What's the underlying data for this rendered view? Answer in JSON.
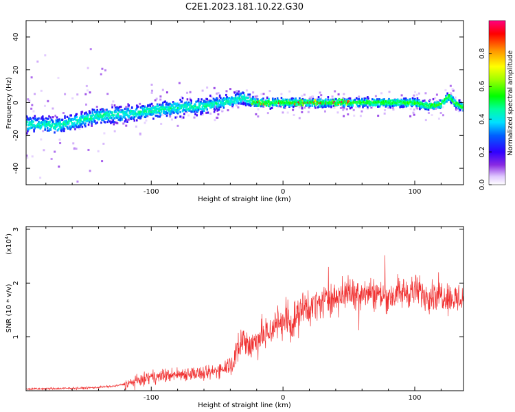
{
  "figure_title": "C2E1.2023.181.10.22.G30",
  "chart_data": [
    {
      "type": "heatmap",
      "name": "spectrogram",
      "xlabel": "Height of straight line (km)",
      "ylabel": "Frequency (Hz)",
      "xlim": [
        -195,
        137
      ],
      "ylim": [
        -50,
        50
      ],
      "xticks": [
        -100,
        0,
        100
      ],
      "xtick_labels": [
        "-100",
        "0",
        "100"
      ],
      "yticks": [
        40,
        20,
        0,
        -20,
        -40
      ],
      "ytick_labels": [
        "40",
        "20",
        "0",
        "-20",
        "-40"
      ],
      "colorbar": {
        "label": "Normalized spectral amplitude",
        "range": [
          0,
          1
        ],
        "ticks": [
          0.0,
          0.2,
          0.4,
          0.6,
          0.8
        ],
        "tick_labels": [
          "0.0",
          "0.2",
          "0.4",
          "0.6",
          "0.8"
        ]
      },
      "ridge": {
        "x": [
          -195,
          -170,
          -160,
          -140,
          -120,
          -100,
          -80,
          -60,
          -40,
          -30,
          -25,
          -20,
          0,
          20,
          40,
          60,
          80,
          100,
          110,
          120,
          126,
          130,
          137
        ],
        "y": [
          -13,
          -14,
          -12,
          -8,
          -7,
          -5,
          -3,
          -2,
          1,
          3,
          1,
          0,
          0,
          0,
          0,
          0,
          0,
          0,
          -2,
          -1,
          4,
          0,
          -3
        ]
      }
    },
    {
      "type": "line",
      "name": "snr",
      "xlabel": "Height of straight line (km)",
      "ylabel": "SNR (10 * v/v)",
      "yscale_label_base": "(x10",
      "yscale_label_exp": "4",
      "yscale_label_close": ")",
      "xlim": [
        -195,
        137
      ],
      "ylim": [
        0,
        3.05
      ],
      "xticks": [
        -100,
        0,
        100
      ],
      "xtick_labels": [
        "-100",
        "0",
        "100"
      ],
      "yticks": [
        1,
        2,
        3
      ],
      "ytick_labels": [
        "1",
        "2",
        "3"
      ],
      "color": "#f03030",
      "series": [
        {
          "name": "SNR",
          "x": [
            -195,
            -170,
            -150,
            -130,
            -120,
            -110,
            -100,
            -90,
            -80,
            -70,
            -60,
            -50,
            -40,
            -35,
            -30,
            -25,
            -20,
            -10,
            -5,
            0,
            5,
            10,
            15,
            20,
            25,
            30,
            40,
            50,
            60,
            70,
            80,
            90,
            100,
            110,
            120,
            130,
            137
          ],
          "y": [
            0.03,
            0.04,
            0.05,
            0.08,
            0.12,
            0.18,
            0.25,
            0.28,
            0.3,
            0.33,
            0.3,
            0.38,
            0.5,
            0.7,
            1.0,
            0.8,
            0.95,
            1.1,
            1.25,
            1.3,
            1.25,
            1.35,
            1.5,
            1.55,
            1.6,
            1.65,
            1.75,
            1.8,
            1.85,
            1.8,
            1.75,
            1.82,
            1.85,
            1.78,
            1.8,
            1.7,
            1.72
          ]
        }
      ]
    }
  ]
}
